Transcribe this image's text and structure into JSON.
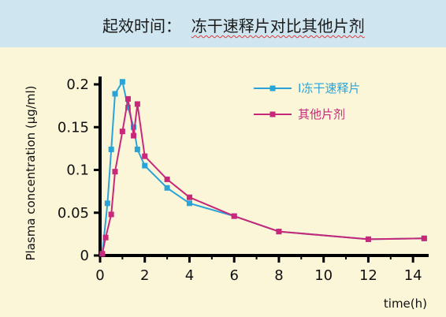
{
  "banner": {
    "title_prefix": "起效时间：",
    "title_main": "冻干速释片对比其他片剂"
  },
  "chart_data": {
    "type": "line",
    "xlabel": "time(h)",
    "ylabel": "Plasma concentration (µg/ml)",
    "xlim": [
      0,
      14.7
    ],
    "ylim": [
      0,
      0.2
    ],
    "x_ticks": [
      0,
      2,
      4,
      6,
      8,
      10,
      12,
      14
    ],
    "y_ticks": [
      0,
      0.05,
      0.1,
      0.15,
      0.2
    ],
    "y_tick_labels": [
      "0",
      "0.05",
      "0.1",
      "0.15",
      "0.2"
    ],
    "grid": false,
    "legend_position": "top-right",
    "series": [
      {
        "name": "I冻干速释片",
        "color": "#2aa4d8",
        "marker": "square",
        "points": [
          [
            0.1,
            0.002
          ],
          [
            0.33,
            0.061
          ],
          [
            0.5,
            0.124
          ],
          [
            0.67,
            0.189
          ],
          [
            1.0,
            0.203
          ],
          [
            1.25,
            0.173
          ],
          [
            1.5,
            0.15
          ],
          [
            1.67,
            0.124
          ],
          [
            2.0,
            0.105
          ],
          [
            3.0,
            0.079
          ],
          [
            4.0,
            0.061
          ],
          [
            6.0,
            0.046
          ],
          [
            8.0,
            0.028
          ],
          [
            12.0,
            0.019
          ],
          [
            14.5,
            0.02
          ]
        ]
      },
      {
        "name": "其他片剂",
        "color": "#c8287a",
        "marker": "square",
        "points": [
          [
            0.1,
            0.002
          ],
          [
            0.25,
            0.021
          ],
          [
            0.5,
            0.048
          ],
          [
            0.67,
            0.098
          ],
          [
            1.0,
            0.145
          ],
          [
            1.25,
            0.183
          ],
          [
            1.5,
            0.14
          ],
          [
            1.67,
            0.177
          ],
          [
            2.0,
            0.116
          ],
          [
            3.0,
            0.089
          ],
          [
            4.0,
            0.068
          ],
          [
            6.0,
            0.046
          ],
          [
            8.0,
            0.028
          ],
          [
            12.0,
            0.019
          ],
          [
            14.5,
            0.02
          ]
        ]
      }
    ]
  }
}
